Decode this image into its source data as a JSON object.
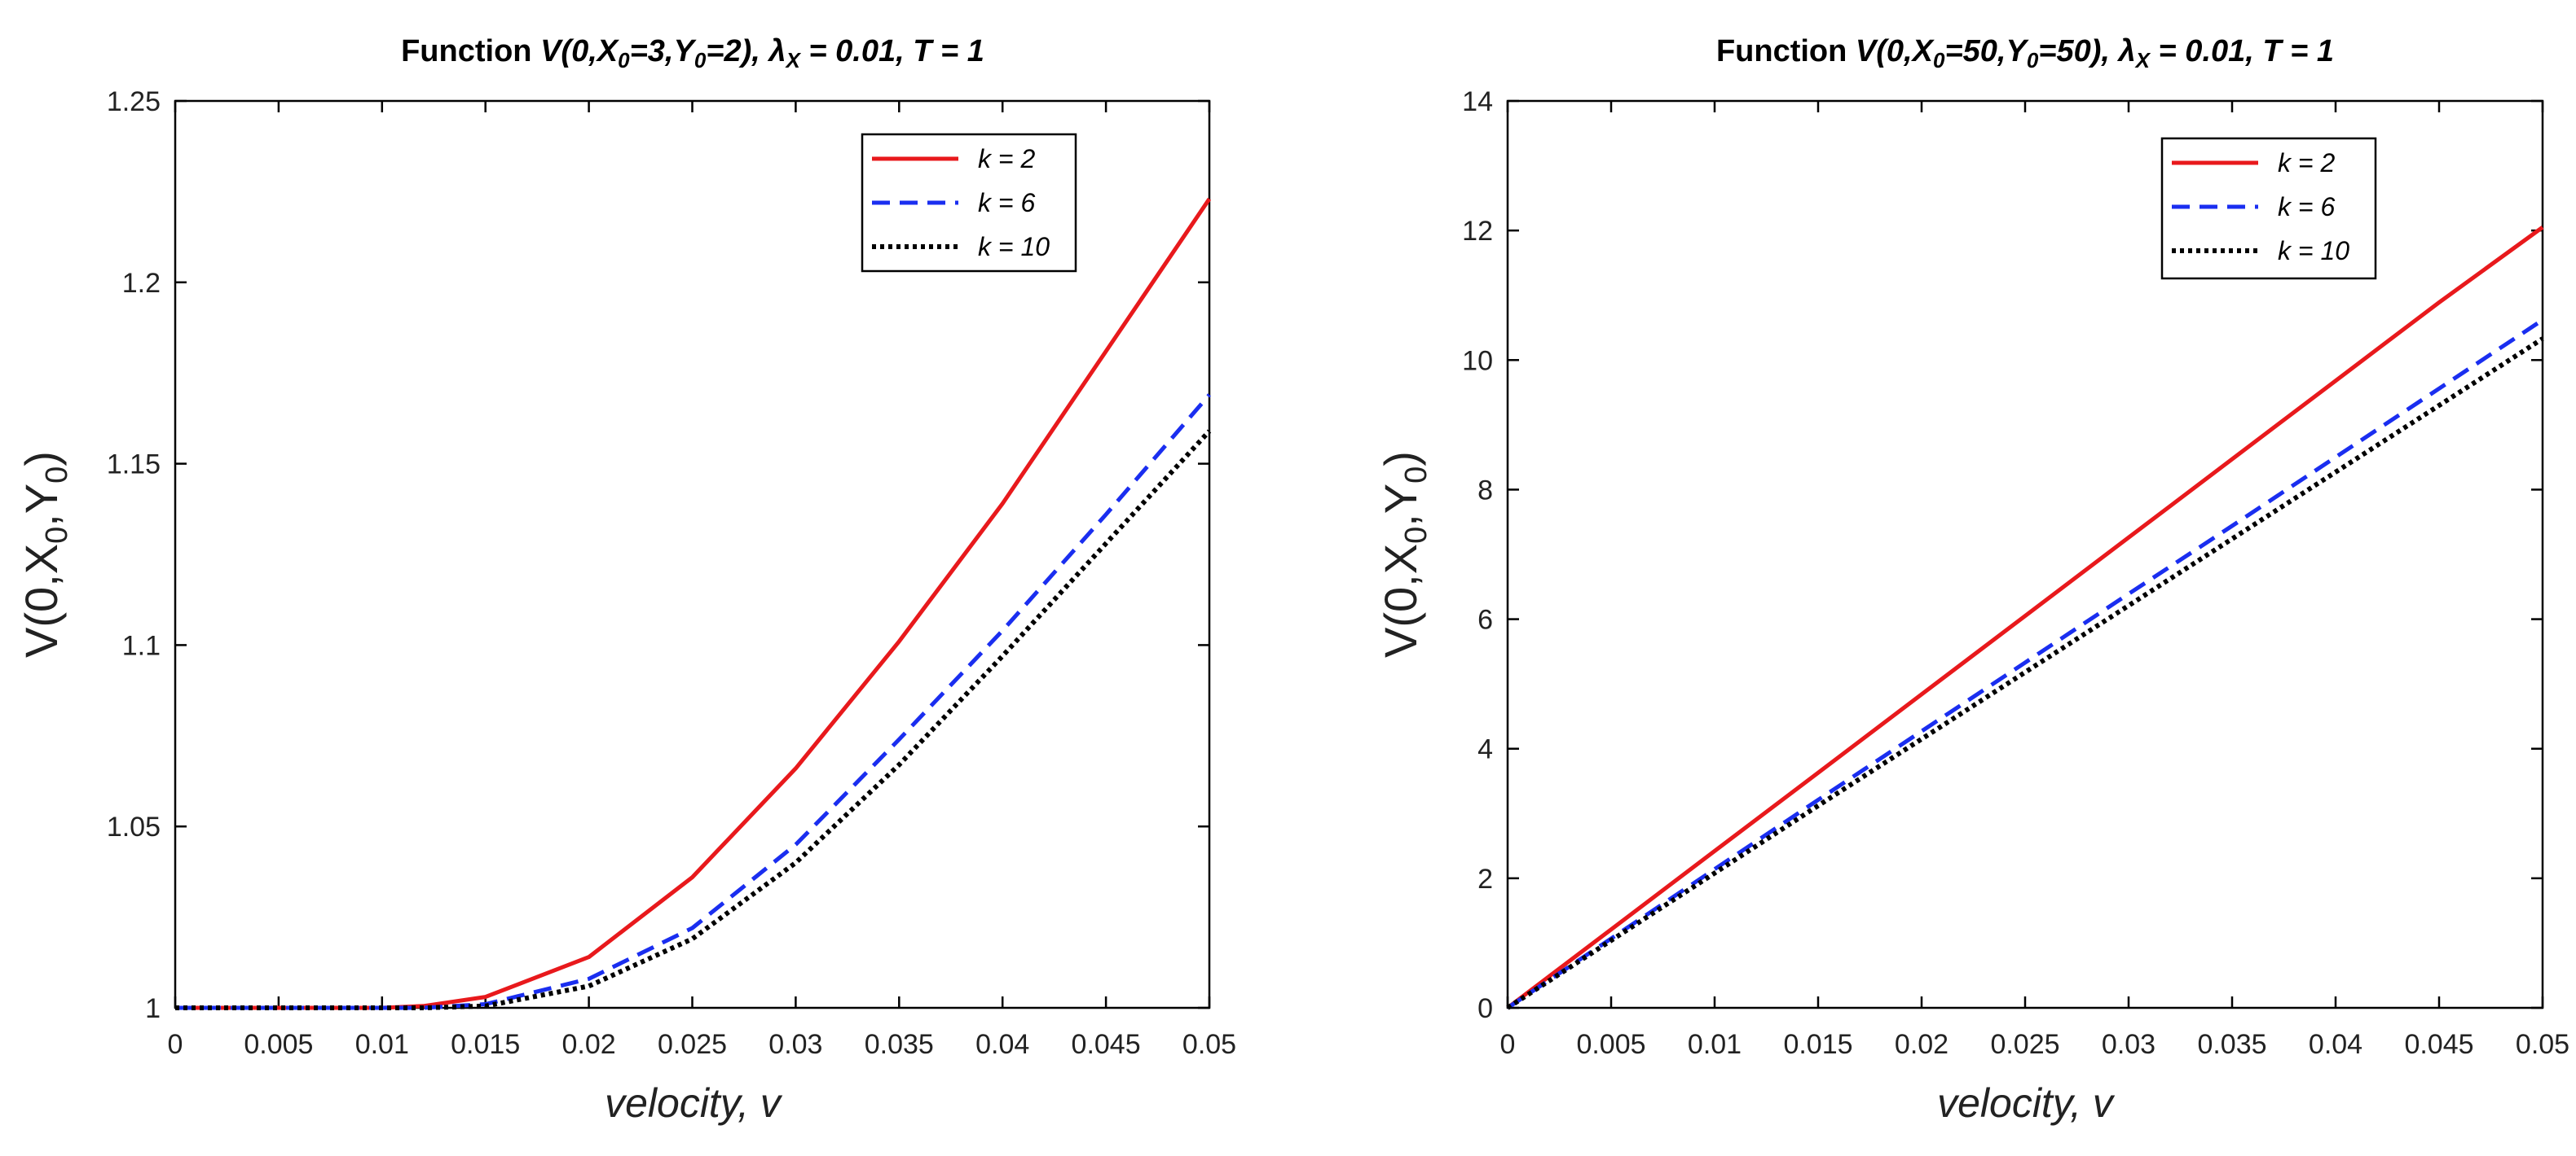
{
  "chart_data": [
    {
      "type": "line",
      "title_prefix": "Function",
      "title_math": "V(0,X0=3,Y0=2), λX = 0.01, T = 1",
      "title_params": {
        "x0": "3",
        "y0": "2",
        "lambda": "0.01",
        "T": "1"
      },
      "xlabel": "velocity, v",
      "ylabel": "V(0,X0,Y0)",
      "xlim": [
        0,
        0.05
      ],
      "ylim": [
        1,
        1.25
      ],
      "xticks": [
        0,
        0.005,
        0.01,
        0.015,
        0.02,
        0.025,
        0.03,
        0.035,
        0.04,
        0.045,
        0.05
      ],
      "xtick_labels": [
        "0",
        "0.005",
        "0.01",
        "0.015",
        "0.02",
        "0.025",
        "0.03",
        "0.035",
        "0.04",
        "0.045",
        "0.05"
      ],
      "yticks": [
        1,
        1.05,
        1.1,
        1.15,
        1.2,
        1.25
      ],
      "ytick_labels": [
        "1",
        "1.05",
        "1.1",
        "1.15",
        "1.2",
        "1.25"
      ],
      "legend_position": "top-right",
      "x": [
        0,
        0.005,
        0.01,
        0.012,
        0.015,
        0.02,
        0.025,
        0.03,
        0.035,
        0.04,
        0.045,
        0.05
      ],
      "series": [
        {
          "name": "k = 2",
          "style": "solid",
          "color": "#e8191c",
          "values": [
            1.0,
            1.0,
            1.0,
            1.0005,
            1.003,
            1.014,
            1.036,
            1.066,
            1.101,
            1.139,
            1.181,
            1.223
          ]
        },
        {
          "name": "k = 6",
          "style": "dashed",
          "color": "#1a2ef0",
          "values": [
            1.0,
            1.0,
            1.0,
            1.0,
            1.001,
            1.008,
            1.022,
            1.045,
            1.074,
            1.104,
            1.136,
            1.169
          ]
        },
        {
          "name": "k = 10",
          "style": "dotted",
          "color": "#000000",
          "values": [
            1.0,
            1.0,
            1.0,
            1.0,
            1.0005,
            1.006,
            1.019,
            1.04,
            1.067,
            1.097,
            1.128,
            1.159
          ]
        }
      ]
    },
    {
      "type": "line",
      "title_prefix": "Function",
      "title_math": "V(0,X0=50,Y0=50), λX = 0.01, T = 1",
      "title_params": {
        "x0": "50",
        "y0": "50",
        "lambda": "0.01",
        "T": "1"
      },
      "xlabel": "velocity, v",
      "ylabel": "V(0,X0,Y0)",
      "xlim": [
        0,
        0.05
      ],
      "ylim": [
        0,
        14
      ],
      "xticks": [
        0,
        0.005,
        0.01,
        0.015,
        0.02,
        0.025,
        0.03,
        0.035,
        0.04,
        0.045,
        0.05
      ],
      "xtick_labels": [
        "0",
        "0.005",
        "0.01",
        "0.015",
        "0.02",
        "0.025",
        "0.03",
        "0.035",
        "0.04",
        "0.045",
        "0.05"
      ],
      "yticks": [
        0,
        2,
        4,
        6,
        8,
        10,
        12,
        14
      ],
      "ytick_labels": [
        "0",
        "2",
        "4",
        "6",
        "8",
        "10",
        "12",
        "14"
      ],
      "legend_position": "top-right",
      "x": [
        0,
        0.005,
        0.01,
        0.015,
        0.02,
        0.025,
        0.03,
        0.035,
        0.04,
        0.045,
        0.05
      ],
      "series": [
        {
          "name": "k = 2",
          "style": "solid",
          "color": "#e8191c",
          "values": [
            0,
            1.21,
            2.42,
            3.63,
            4.84,
            6.05,
            7.26,
            8.47,
            9.68,
            10.89,
            12.05
          ]
        },
        {
          "name": "k = 6",
          "style": "dashed",
          "color": "#1a2ef0",
          "values": [
            0,
            1.07,
            2.14,
            3.21,
            4.27,
            5.33,
            6.39,
            7.44,
            8.5,
            9.56,
            10.62
          ]
        },
        {
          "name": "k = 10",
          "style": "dotted",
          "color": "#000000",
          "values": [
            0,
            1.04,
            2.08,
            3.12,
            4.15,
            5.18,
            6.21,
            7.24,
            8.27,
            9.3,
            10.33
          ]
        }
      ]
    }
  ]
}
